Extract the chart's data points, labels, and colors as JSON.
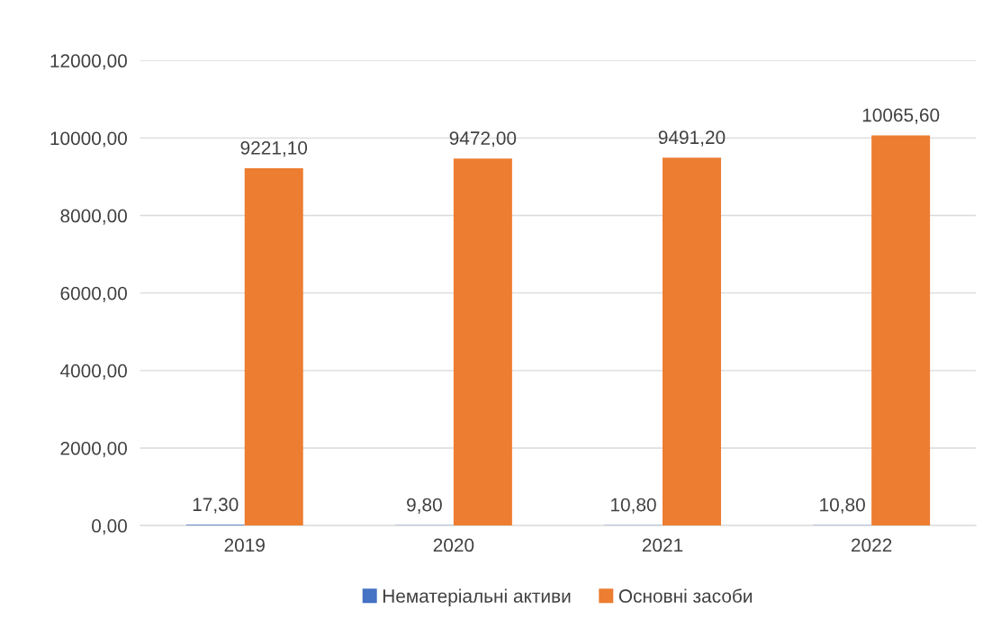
{
  "chart_data": {
    "type": "bar",
    "categories": [
      "2019",
      "2020",
      "2021",
      "2022"
    ],
    "series": [
      {
        "name": "Нематеріальні активи",
        "color": "#4472c4",
        "values": [
          17.3,
          9.8,
          10.8,
          10.8
        ],
        "value_labels": [
          "17,30",
          "9,80",
          "10,80",
          "10,80"
        ]
      },
      {
        "name": "Основні засоби",
        "color": "#ed7d31",
        "values": [
          9221.1,
          9472.0,
          9491.2,
          10065.6
        ],
        "value_labels": [
          "9221,10",
          "9472,00",
          "9491,20",
          "10065,60"
        ]
      }
    ],
    "ylim": [
      0,
      12000
    ],
    "yticks": [
      {
        "value": 0,
        "label": "0,00"
      },
      {
        "value": 2000,
        "label": "2000,00"
      },
      {
        "value": 4000,
        "label": "4000,00"
      },
      {
        "value": 6000,
        "label": "6000,00"
      },
      {
        "value": 8000,
        "label": "8000,00"
      },
      {
        "value": 10000,
        "label": "10000,00"
      },
      {
        "value": 12000,
        "label": "12000,00"
      }
    ],
    "grid": "y",
    "legend": "bottom"
  }
}
